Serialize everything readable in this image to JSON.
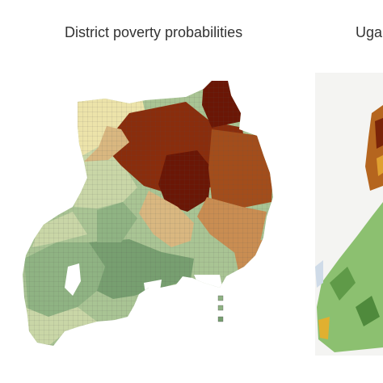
{
  "left_panel": {
    "title": "District poverty probabilities"
  },
  "right_panel": {
    "title": "Uga"
  },
  "palette": {
    "darkest_brown": "#6b1605",
    "dark_brown": "#8a2d0c",
    "brown": "#a34d1b",
    "tan": "#c98d52",
    "light_tan": "#d9b780",
    "pale_yellow": "#ece3aa",
    "pale_green": "#c9d6a7",
    "light_green": "#a9c494",
    "green": "#8fb383",
    "dark_green": "#779f70",
    "grid_line": "#555555"
  }
}
